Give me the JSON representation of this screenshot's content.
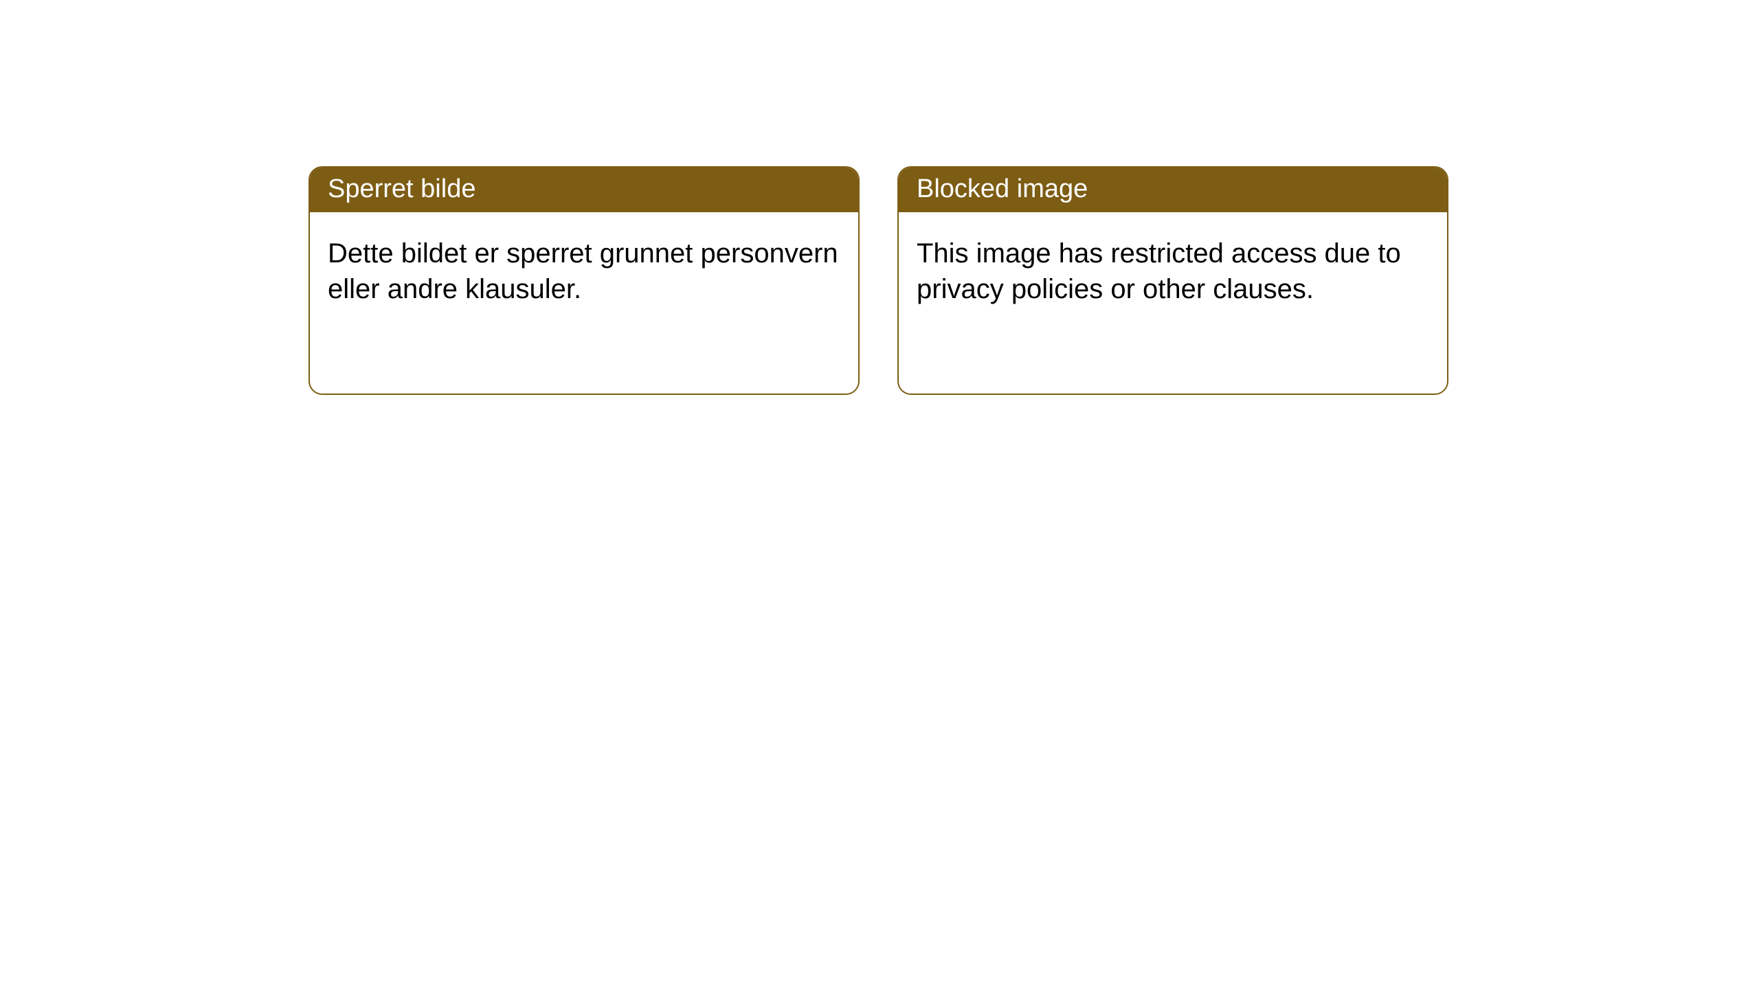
{
  "cards": [
    {
      "title": "Sperret bilde",
      "body": "Dette bildet er sperret grunnet personvern eller andre klausuler."
    },
    {
      "title": "Blocked image",
      "body": "This image has restricted access due to privacy policies or other clauses."
    }
  ],
  "style": {
    "header_bg": "#7d5d14",
    "header_text_color": "#ffffff",
    "border_color": "#7d5d14",
    "card_bg": "#ffffff",
    "body_text_color": "#000000",
    "border_radius": 20,
    "title_fontsize": 38,
    "body_fontsize": 40
  }
}
